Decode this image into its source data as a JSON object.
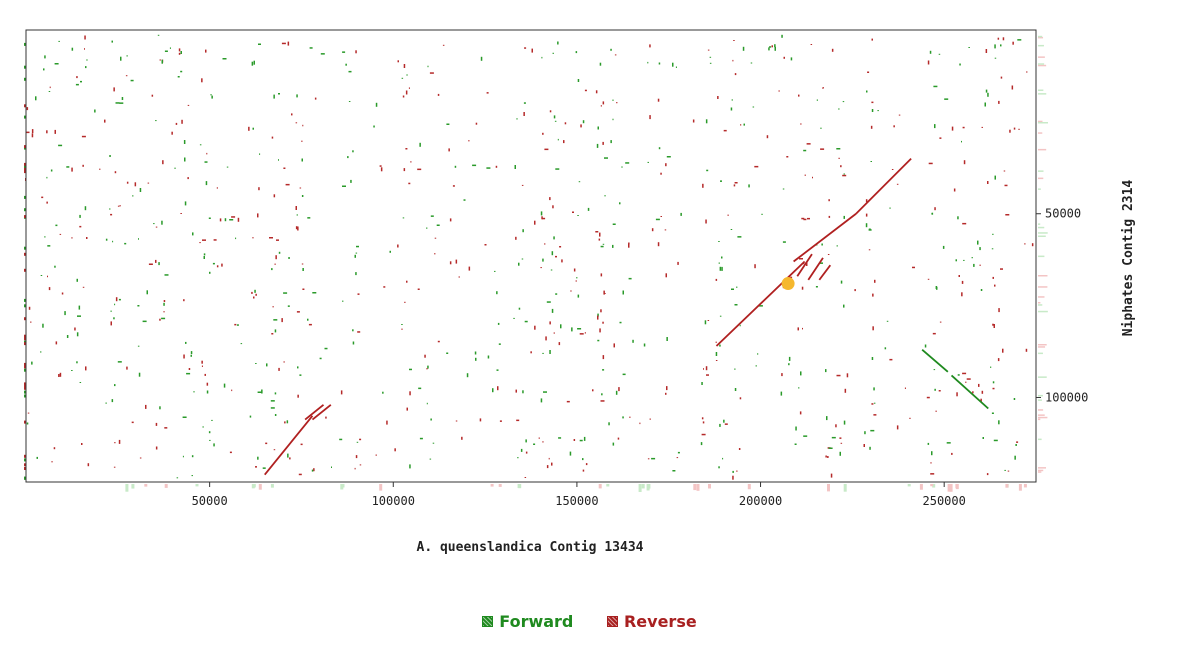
{
  "chart_data": {
    "type": "scatter",
    "title": "",
    "xlabel": "A. queenslandica Contig 13434",
    "ylabel": "Niphates Contig 2314",
    "xlim": [
      0,
      275000
    ],
    "ylim": [
      0,
      123000
    ],
    "y_inverted": true,
    "x_ticks": [
      50000,
      100000,
      150000,
      200000,
      250000
    ],
    "y_ticks": [
      50000,
      100000
    ],
    "legend": [
      {
        "name": "Forward",
        "color": "#1f8a1f"
      },
      {
        "name": "Reverse",
        "color": "#a82020"
      }
    ],
    "legend_position": "bottom-center",
    "highlight_point": {
      "x": 207500,
      "y": 69000,
      "color": "#f5b82e"
    },
    "series": [
      {
        "name": "Reverse",
        "color": "#b02020",
        "segments": [
          {
            "x1": 65000,
            "y1": 121000,
            "x2": 78000,
            "y2": 105000
          },
          {
            "x1": 76000,
            "y1": 106000,
            "x2": 81000,
            "y2": 102000
          },
          {
            "x1": 78000,
            "y1": 106000,
            "x2": 83000,
            "y2": 102000
          },
          {
            "x1": 188000,
            "y1": 86000,
            "x2": 212000,
            "y2": 63000
          },
          {
            "x1": 209000,
            "y1": 63000,
            "x2": 226000,
            "y2": 50000
          },
          {
            "x1": 226000,
            "y1": 50000,
            "x2": 241000,
            "y2": 35000
          },
          {
            "x1": 210000,
            "y1": 67000,
            "x2": 214000,
            "y2": 61000
          },
          {
            "x1": 213000,
            "y1": 68000,
            "x2": 217000,
            "y2": 62000
          },
          {
            "x1": 216000,
            "y1": 68000,
            "x2": 219000,
            "y2": 64000
          }
        ]
      },
      {
        "name": "Forward",
        "color": "#1f8a1f",
        "segments": [
          {
            "x1": 244000,
            "y1": 87000,
            "x2": 251000,
            "y2": 93000
          },
          {
            "x1": 252000,
            "y1": 94000,
            "x2": 262000,
            "y2": 103000
          }
        ]
      }
    ]
  }
}
